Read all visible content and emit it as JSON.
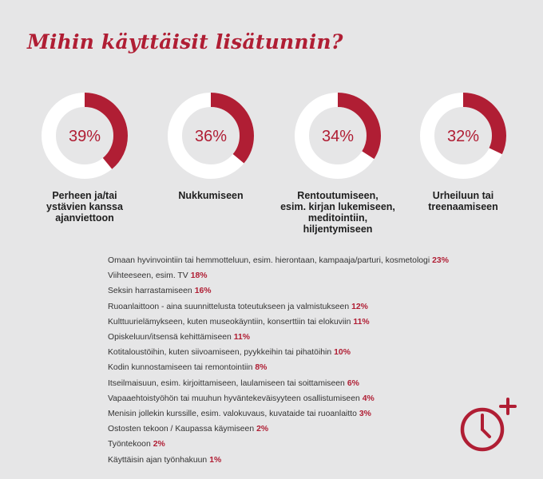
{
  "title": "Mihin käyttäisit lisätunnin?",
  "colors": {
    "accent": "#b01e34",
    "ring_bg": "#ffffff",
    "text": "#1e1e1e"
  },
  "chart_data": [
    {
      "type": "pie",
      "title": "Mihin käyttäisit lisätunnin?",
      "slices": [
        {
          "label": "Perheen ja/tai ystävien kanssa ajanviettoon",
          "label_lines": [
            "Perheen ja/tai",
            "ystävien kanssa",
            "ajanviettoon"
          ],
          "value": 39,
          "value_label": "39%"
        },
        {
          "label": "Nukkumiseen",
          "label_lines": [
            "Nukkumiseen"
          ],
          "value": 36,
          "value_label": "36%"
        },
        {
          "label": "Rentoutumiseen, esim. kirjan lukemiseen, meditointiin, hiljentymiseen",
          "label_lines": [
            "Rentoutumiseen,",
            "esim. kirjan lukemiseen,",
            "meditointiin,",
            "hiljentymiseen"
          ],
          "value": 34,
          "value_label": "34%"
        },
        {
          "label": "Urheiluun tai treenaamiseen",
          "label_lines": [
            "Urheiluun tai",
            "treenaamiseen"
          ],
          "value": 32,
          "value_label": "32%"
        }
      ]
    },
    {
      "type": "table",
      "rows": [
        {
          "label": "Omaan hyvinvointiin tai hemmotteluun, esim. hierontaan, kampaaja/parturi, kosmetologi",
          "value": 23,
          "value_label": "23%"
        },
        {
          "label": "Viihteeseen, esim. TV",
          "value": 18,
          "value_label": "18%"
        },
        {
          "label": "Seksin harrastamiseen",
          "value": 16,
          "value_label": "16%"
        },
        {
          "label": "Ruoanlaittoon - aina suunnittelusta toteutukseen ja valmistukseen",
          "value": 12,
          "value_label": "12%"
        },
        {
          "label": "Kulttuurielämykseen, kuten museokäyntiin, konserttiin tai elokuviin",
          "value": 11,
          "value_label": "11%"
        },
        {
          "label": "Opiskeluun/itsensä kehittämiseen",
          "value": 11,
          "value_label": "11%"
        },
        {
          "label": "Kotitaloustöihin, kuten siivoamiseen, pyykkeihin tai pihatöihin",
          "value": 10,
          "value_label": "10%"
        },
        {
          "label": "Kodin kunnostamiseen tai remontointiin",
          "value": 8,
          "value_label": "8%"
        },
        {
          "label": "Itseilmaisuun, esim. kirjoittamiseen, laulamiseen tai soittamiseen",
          "value": 6,
          "value_label": "6%"
        },
        {
          "label": "Vapaaehtoistyöhön tai muuhun hyväntekeväisyyteen osallistumiseen",
          "value": 4,
          "value_label": "4%"
        },
        {
          "label": "Menisin jollekin kurssille, esim. valokuvaus, kuvataide tai ruoanlaitto",
          "value": 3,
          "value_label": "3%"
        },
        {
          "label": "Ostosten tekoon / Kaupassa käymiseen",
          "value": 2,
          "value_label": "2%"
        },
        {
          "label": "Työntekoon",
          "value": 2,
          "value_label": "2%"
        },
        {
          "label": "Käyttäisin ajan työnhakuun",
          "value": 1,
          "value_label": "1%"
        }
      ]
    }
  ],
  "icon": "clock-plus-icon"
}
